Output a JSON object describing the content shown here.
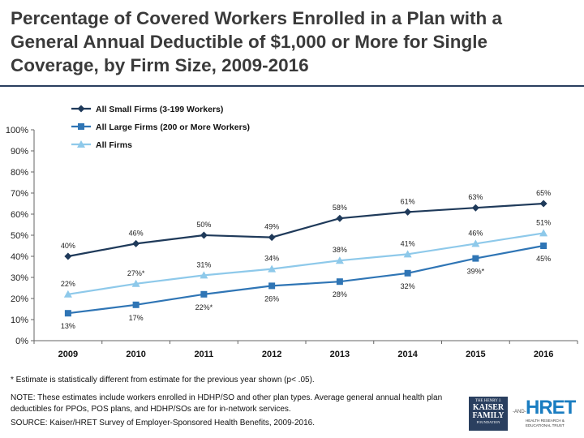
{
  "title": "Percentage of Covered Workers Enrolled in a Plan with a General Annual Deductible of $1,000 or More for Single Coverage, by Firm Size, 2009-2016",
  "footnote": "* Estimate is statistically different from estimate for the previous year shown (p< .05).",
  "note": "NOTE: These estimates include workers enrolled in HDHP/SO and other plan types. Average general annual health plan deductibles for PPOs, POS plans, and HDHP/SOs are for in-network services.",
  "source": "SOURCE: Kaiser/HRET Survey of Employer-Sponsored Health Benefits, 2009-2016.",
  "logos": {
    "kff_line1": "THE HENRY J.",
    "kff_line2": "KAISER",
    "kff_line3": "FAMILY",
    "kff_line4": "FOUNDATION",
    "and": "-AND-",
    "hret_name": "HRET",
    "hret_tagline": "HEALTH RESEARCH & EDUCATIONAL TRUST"
  },
  "colors": {
    "small_firms": "#1f3a5a",
    "large_firms": "#2f75b5",
    "all_firms": "#8ec9ea",
    "title_rule": "#2a3f5f"
  },
  "chart_data": {
    "type": "line",
    "title": "Percentage of Covered Workers Enrolled in a Plan with a General Annual Deductible of $1,000 or More for Single Coverage, by Firm Size, 2009-2016",
    "xlabel": "",
    "ylabel": "",
    "categories": [
      "2009",
      "2010",
      "2011",
      "2012",
      "2013",
      "2014",
      "2015",
      "2016"
    ],
    "ylim": [
      0,
      100
    ],
    "yticks": [
      "0%",
      "10%",
      "20%",
      "30%",
      "40%",
      "50%",
      "60%",
      "70%",
      "80%",
      "90%",
      "100%"
    ],
    "grid": false,
    "legend_position": "top-left",
    "series": [
      {
        "name": "All Small Firms (3-199 Workers)",
        "marker": "diamond",
        "values": [
          40,
          46,
          50,
          49,
          58,
          61,
          63,
          65
        ],
        "labels": [
          "40%",
          "46%",
          "50%",
          "49%",
          "58%",
          "61%",
          "63%",
          "65%"
        ]
      },
      {
        "name": "All Large Firms (200 or More Workers)",
        "marker": "square",
        "values": [
          13,
          17,
          22,
          26,
          28,
          32,
          39,
          45
        ],
        "labels": [
          "13%",
          "17%",
          "22%*",
          "26%",
          "28%",
          "32%",
          "39%*",
          "45%"
        ]
      },
      {
        "name": "All Firms",
        "marker": "triangle",
        "values": [
          22,
          27,
          31,
          34,
          38,
          41,
          46,
          51
        ],
        "labels": [
          "22%",
          "27%*",
          "31%",
          "34%",
          "38%",
          "41%",
          "46%",
          "51%"
        ]
      }
    ]
  }
}
